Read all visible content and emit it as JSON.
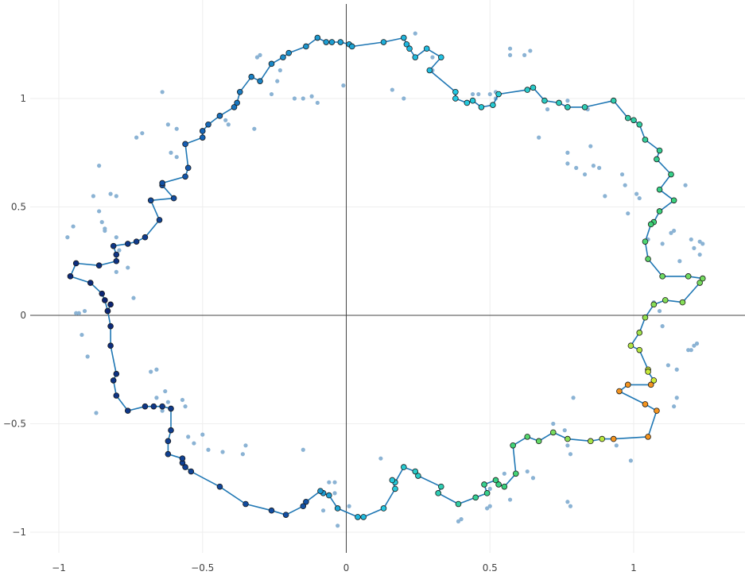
{
  "colors": {
    "background": "#ffffff",
    "grid": "#eeeeee",
    "zeroline": "#444444",
    "tick_text": "#444444",
    "path_line": "#1f77b4",
    "noise_marker": "#8bb3d4",
    "marker_outline": "#1a1a1a",
    "colorscale": [
      "#0a1f6e",
      "#1560b5",
      "#22c8e6",
      "#3ad27a",
      "#e8ee2a",
      "#f58a1e",
      "#e0302a",
      "#b31a1a"
    ]
  },
  "chart_data": {
    "type": "scatter",
    "title": "",
    "xlabel": "",
    "ylabel": "",
    "xlim": [
      -1.0,
      1.38
    ],
    "ylim": [
      -1.08,
      1.44
    ],
    "xticks": [
      -1,
      -0.5,
      0,
      0.5,
      1
    ],
    "yticks": [
      -1,
      -0.5,
      0,
      0.5,
      1
    ],
    "xticklabels": [
      "−1",
      "−0.5",
      "0",
      "0.5",
      "1"
    ],
    "yticklabels": [
      "−1",
      "−0.5",
      "0",
      "0.5",
      "1"
    ],
    "grid": true,
    "zerolines": true,
    "legend": "none",
    "series": [
      {
        "mode": "markers",
        "role": "noise",
        "points": [
          [
            -0.97,
            0.36
          ],
          [
            -0.95,
            0.41
          ],
          [
            -0.94,
            0.01
          ],
          [
            -0.93,
            0.01
          ],
          [
            -0.92,
            -0.09
          ],
          [
            -0.91,
            0.02
          ],
          [
            -0.9,
            -0.19
          ],
          [
            -0.88,
            0.55
          ],
          [
            -0.87,
            -0.45
          ],
          [
            -0.86,
            0.69
          ],
          [
            -0.86,
            0.48
          ],
          [
            -0.85,
            0.43
          ],
          [
            -0.84,
            0.39
          ],
          [
            -0.84,
            0.4
          ],
          [
            -0.82,
            0.56
          ],
          [
            -0.8,
            0.55
          ],
          [
            -0.8,
            0.36
          ],
          [
            -0.79,
            0.3
          ],
          [
            -0.8,
            0.2
          ],
          [
            -0.76,
            0.22
          ],
          [
            -0.74,
            0.08
          ],
          [
            -0.73,
            0.82
          ],
          [
            -0.71,
            0.84
          ],
          [
            -0.68,
            -0.26
          ],
          [
            -0.66,
            -0.38
          ],
          [
            -0.66,
            -0.25
          ],
          [
            -0.64,
            -0.44
          ],
          [
            -0.63,
            -0.35
          ],
          [
            -0.62,
            -0.4
          ],
          [
            -0.62,
            0.88
          ],
          [
            -0.61,
            0.75
          ],
          [
            -0.59,
            0.73
          ],
          [
            -0.59,
            0.86
          ],
          [
            -0.64,
            1.03
          ],
          [
            -0.57,
            -0.39
          ],
          [
            -0.56,
            -0.42
          ],
          [
            -0.55,
            -0.56
          ],
          [
            -0.53,
            -0.59
          ],
          [
            -0.5,
            -0.55
          ],
          [
            -0.48,
            -0.62
          ],
          [
            -0.43,
            -0.63
          ],
          [
            -0.42,
            0.9
          ],
          [
            -0.41,
            0.88
          ],
          [
            -0.36,
            -0.64
          ],
          [
            -0.35,
            -0.6
          ],
          [
            -0.32,
            0.86
          ],
          [
            -0.31,
            1.19
          ],
          [
            -0.3,
            1.2
          ],
          [
            -0.26,
            1.02
          ],
          [
            -0.24,
            1.08
          ],
          [
            -0.23,
            1.13
          ],
          [
            -0.18,
            1.0
          ],
          [
            -0.15,
            -0.62
          ],
          [
            -0.15,
            1.0
          ],
          [
            -0.14,
            -0.86
          ],
          [
            -0.12,
            1.01
          ],
          [
            -0.1,
            0.98
          ],
          [
            -0.08,
            -0.9
          ],
          [
            -0.06,
            -0.77
          ],
          [
            -0.04,
            -0.77
          ],
          [
            -0.04,
            -0.82
          ],
          [
            -0.03,
            -0.97
          ],
          [
            -0.01,
            1.06
          ],
          [
            0.01,
            -0.88
          ],
          [
            0.12,
            -0.66
          ],
          [
            0.16,
            1.04
          ],
          [
            0.2,
            1.0
          ],
          [
            0.24,
            1.3
          ],
          [
            0.3,
            1.13
          ],
          [
            0.3,
            1.19
          ],
          [
            0.39,
            -0.95
          ],
          [
            0.4,
            -0.94
          ],
          [
            0.44,
            1.02
          ],
          [
            0.46,
            1.02
          ],
          [
            0.5,
            1.02
          ],
          [
            0.5,
            -0.8
          ],
          [
            0.5,
            -0.88
          ],
          [
            0.49,
            -0.89
          ],
          [
            0.52,
            1.03
          ],
          [
            0.52,
            1.0
          ],
          [
            0.55,
            -0.73
          ],
          [
            0.57,
            1.23
          ],
          [
            0.57,
            1.2
          ],
          [
            0.57,
            -0.85
          ],
          [
            0.62,
            1.2
          ],
          [
            0.64,
            1.22
          ],
          [
            0.63,
            -0.72
          ],
          [
            0.65,
            -0.75
          ],
          [
            0.67,
            0.82
          ],
          [
            0.7,
            0.95
          ],
          [
            0.72,
            -0.5
          ],
          [
            0.76,
            -0.53
          ],
          [
            0.77,
            0.99
          ],
          [
            0.77,
            0.7
          ],
          [
            0.77,
            0.75
          ],
          [
            0.77,
            -0.6
          ],
          [
            0.77,
            -0.86
          ],
          [
            0.78,
            -0.64
          ],
          [
            0.78,
            -0.88
          ],
          [
            0.79,
            -0.38
          ],
          [
            0.8,
            0.68
          ],
          [
            0.83,
            0.65
          ],
          [
            0.84,
            0.95
          ],
          [
            0.85,
            0.78
          ],
          [
            0.86,
            0.69
          ],
          [
            0.88,
            0.68
          ],
          [
            0.9,
            0.55
          ],
          [
            0.94,
            -0.6
          ],
          [
            0.96,
            0.65
          ],
          [
            0.97,
            0.6
          ],
          [
            0.98,
            0.47
          ],
          [
            0.99,
            -0.67
          ],
          [
            1.01,
            0.56
          ],
          [
            1.02,
            0.54
          ],
          [
            1.05,
            0.35
          ],
          [
            1.07,
            0.06
          ],
          [
            1.09,
            0.02
          ],
          [
            1.1,
            0.33
          ],
          [
            1.1,
            -0.05
          ],
          [
            1.12,
            -0.23
          ],
          [
            1.13,
            0.38
          ],
          [
            1.14,
            0.39
          ],
          [
            1.14,
            -0.42
          ],
          [
            1.15,
            -0.38
          ],
          [
            1.15,
            -0.25
          ],
          [
            1.16,
            0.25
          ],
          [
            1.18,
            0.6
          ],
          [
            1.19,
            -0.16
          ],
          [
            1.2,
            0.35
          ],
          [
            1.2,
            -0.16
          ],
          [
            1.21,
            0.31
          ],
          [
            1.21,
            -0.14
          ],
          [
            1.22,
            -0.13
          ],
          [
            1.23,
            0.28
          ],
          [
            1.23,
            0.34
          ],
          [
            1.24,
            0.33
          ]
        ]
      },
      {
        "mode": "lines+markers",
        "role": "path",
        "points": [
          [
            -0.82,
            0.05
          ],
          [
            -0.83,
            0.02
          ],
          [
            -0.84,
            0.07
          ],
          [
            -0.85,
            0.1
          ],
          [
            -0.89,
            0.15
          ],
          [
            -0.96,
            0.18
          ],
          [
            -0.94,
            0.24
          ],
          [
            -0.86,
            0.23
          ],
          [
            -0.8,
            0.25
          ],
          [
            -0.8,
            0.28
          ],
          [
            -0.81,
            0.32
          ],
          [
            -0.76,
            0.33
          ],
          [
            -0.73,
            0.34
          ],
          [
            -0.7,
            0.36
          ],
          [
            -0.65,
            0.44
          ],
          [
            -0.68,
            0.53
          ],
          [
            -0.6,
            0.54
          ],
          [
            -0.64,
            0.6
          ],
          [
            -0.64,
            0.61
          ],
          [
            -0.56,
            0.64
          ],
          [
            -0.55,
            0.68
          ],
          [
            -0.56,
            0.79
          ],
          [
            -0.5,
            0.82
          ],
          [
            -0.5,
            0.85
          ],
          [
            -0.48,
            0.88
          ],
          [
            -0.44,
            0.92
          ],
          [
            -0.39,
            0.96
          ],
          [
            -0.38,
            0.98
          ],
          [
            -0.37,
            1.03
          ],
          [
            -0.33,
            1.1
          ],
          [
            -0.3,
            1.08
          ],
          [
            -0.26,
            1.16
          ],
          [
            -0.22,
            1.19
          ],
          [
            -0.2,
            1.21
          ],
          [
            -0.14,
            1.24
          ],
          [
            -0.1,
            1.28
          ],
          [
            -0.07,
            1.26
          ],
          [
            -0.05,
            1.26
          ],
          [
            -0.02,
            1.26
          ],
          [
            0.01,
            1.25
          ],
          [
            0.02,
            1.24
          ],
          [
            0.13,
            1.26
          ],
          [
            0.2,
            1.28
          ],
          [
            0.21,
            1.25
          ],
          [
            0.22,
            1.23
          ],
          [
            0.24,
            1.19
          ],
          [
            0.28,
            1.23
          ],
          [
            0.33,
            1.19
          ],
          [
            0.29,
            1.13
          ],
          [
            0.38,
            1.03
          ],
          [
            0.38,
            1.0
          ],
          [
            0.42,
            0.98
          ],
          [
            0.44,
            0.99
          ],
          [
            0.47,
            0.96
          ],
          [
            0.51,
            0.97
          ],
          [
            0.53,
            1.02
          ],
          [
            0.63,
            1.04
          ],
          [
            0.65,
            1.05
          ],
          [
            0.69,
            0.99
          ],
          [
            0.74,
            0.98
          ],
          [
            0.77,
            0.96
          ],
          [
            0.83,
            0.96
          ],
          [
            0.93,
            0.99
          ],
          [
            0.98,
            0.91
          ],
          [
            1.0,
            0.9
          ],
          [
            1.02,
            0.88
          ],
          [
            1.04,
            0.81
          ],
          [
            1.09,
            0.76
          ],
          [
            1.08,
            0.72
          ],
          [
            1.13,
            0.65
          ],
          [
            1.09,
            0.58
          ],
          [
            1.14,
            0.53
          ],
          [
            1.09,
            0.48
          ],
          [
            1.07,
            0.43
          ],
          [
            1.06,
            0.42
          ],
          [
            1.04,
            0.34
          ],
          [
            1.05,
            0.26
          ],
          [
            1.1,
            0.18
          ],
          [
            1.19,
            0.18
          ],
          [
            1.24,
            0.17
          ],
          [
            1.23,
            0.15
          ],
          [
            1.17,
            0.06
          ],
          [
            1.11,
            0.07
          ],
          [
            1.07,
            0.05
          ],
          [
            1.04,
            -0.01
          ],
          [
            1.02,
            -0.08
          ],
          [
            0.99,
            -0.14
          ],
          [
            1.02,
            -0.16
          ],
          [
            1.05,
            -0.25
          ],
          [
            1.05,
            -0.26
          ],
          [
            1.07,
            -0.3
          ],
          [
            1.06,
            -0.32
          ],
          [
            0.98,
            -0.32
          ],
          [
            0.95,
            -0.35
          ],
          [
            1.04,
            -0.41
          ],
          [
            1.08,
            -0.44
          ],
          [
            1.05,
            -0.56
          ],
          [
            0.93,
            -0.57
          ],
          [
            0.89,
            -0.57
          ],
          [
            0.85,
            -0.58
          ],
          [
            0.77,
            -0.57
          ],
          [
            0.72,
            -0.54
          ],
          [
            0.67,
            -0.58
          ],
          [
            0.63,
            -0.56
          ],
          [
            0.58,
            -0.6
          ],
          [
            0.59,
            -0.73
          ],
          [
            0.55,
            -0.79
          ],
          [
            0.53,
            -0.78
          ],
          [
            0.52,
            -0.76
          ],
          [
            0.48,
            -0.78
          ],
          [
            0.49,
            -0.82
          ],
          [
            0.45,
            -0.84
          ],
          [
            0.39,
            -0.87
          ],
          [
            0.32,
            -0.82
          ],
          [
            0.33,
            -0.79
          ],
          [
            0.25,
            -0.74
          ],
          [
            0.24,
            -0.72
          ],
          [
            0.2,
            -0.7
          ],
          [
            0.17,
            -0.77
          ],
          [
            0.16,
            -0.76
          ],
          [
            0.17,
            -0.8
          ],
          [
            0.13,
            -0.89
          ],
          [
            0.06,
            -0.93
          ],
          [
            0.04,
            -0.93
          ],
          [
            -0.03,
            -0.89
          ],
          [
            -0.06,
            -0.83
          ],
          [
            -0.08,
            -0.82
          ],
          [
            -0.09,
            -0.81
          ],
          [
            -0.14,
            -0.86
          ],
          [
            -0.15,
            -0.88
          ],
          [
            -0.21,
            -0.92
          ],
          [
            -0.26,
            -0.9
          ],
          [
            -0.35,
            -0.87
          ],
          [
            -0.44,
            -0.79
          ],
          [
            -0.54,
            -0.72
          ],
          [
            -0.56,
            -0.7
          ],
          [
            -0.57,
            -0.68
          ],
          [
            -0.57,
            -0.66
          ],
          [
            -0.62,
            -0.64
          ],
          [
            -0.62,
            -0.58
          ],
          [
            -0.61,
            -0.53
          ],
          [
            -0.61,
            -0.43
          ],
          [
            -0.64,
            -0.42
          ],
          [
            -0.67,
            -0.42
          ],
          [
            -0.7,
            -0.42
          ],
          [
            -0.76,
            -0.44
          ],
          [
            -0.8,
            -0.37
          ],
          [
            -0.81,
            -0.3
          ],
          [
            -0.8,
            -0.27
          ],
          [
            -0.82,
            -0.14
          ],
          [
            -0.82,
            -0.05
          ],
          [
            -0.83,
            0.02
          ]
        ]
      }
    ]
  }
}
